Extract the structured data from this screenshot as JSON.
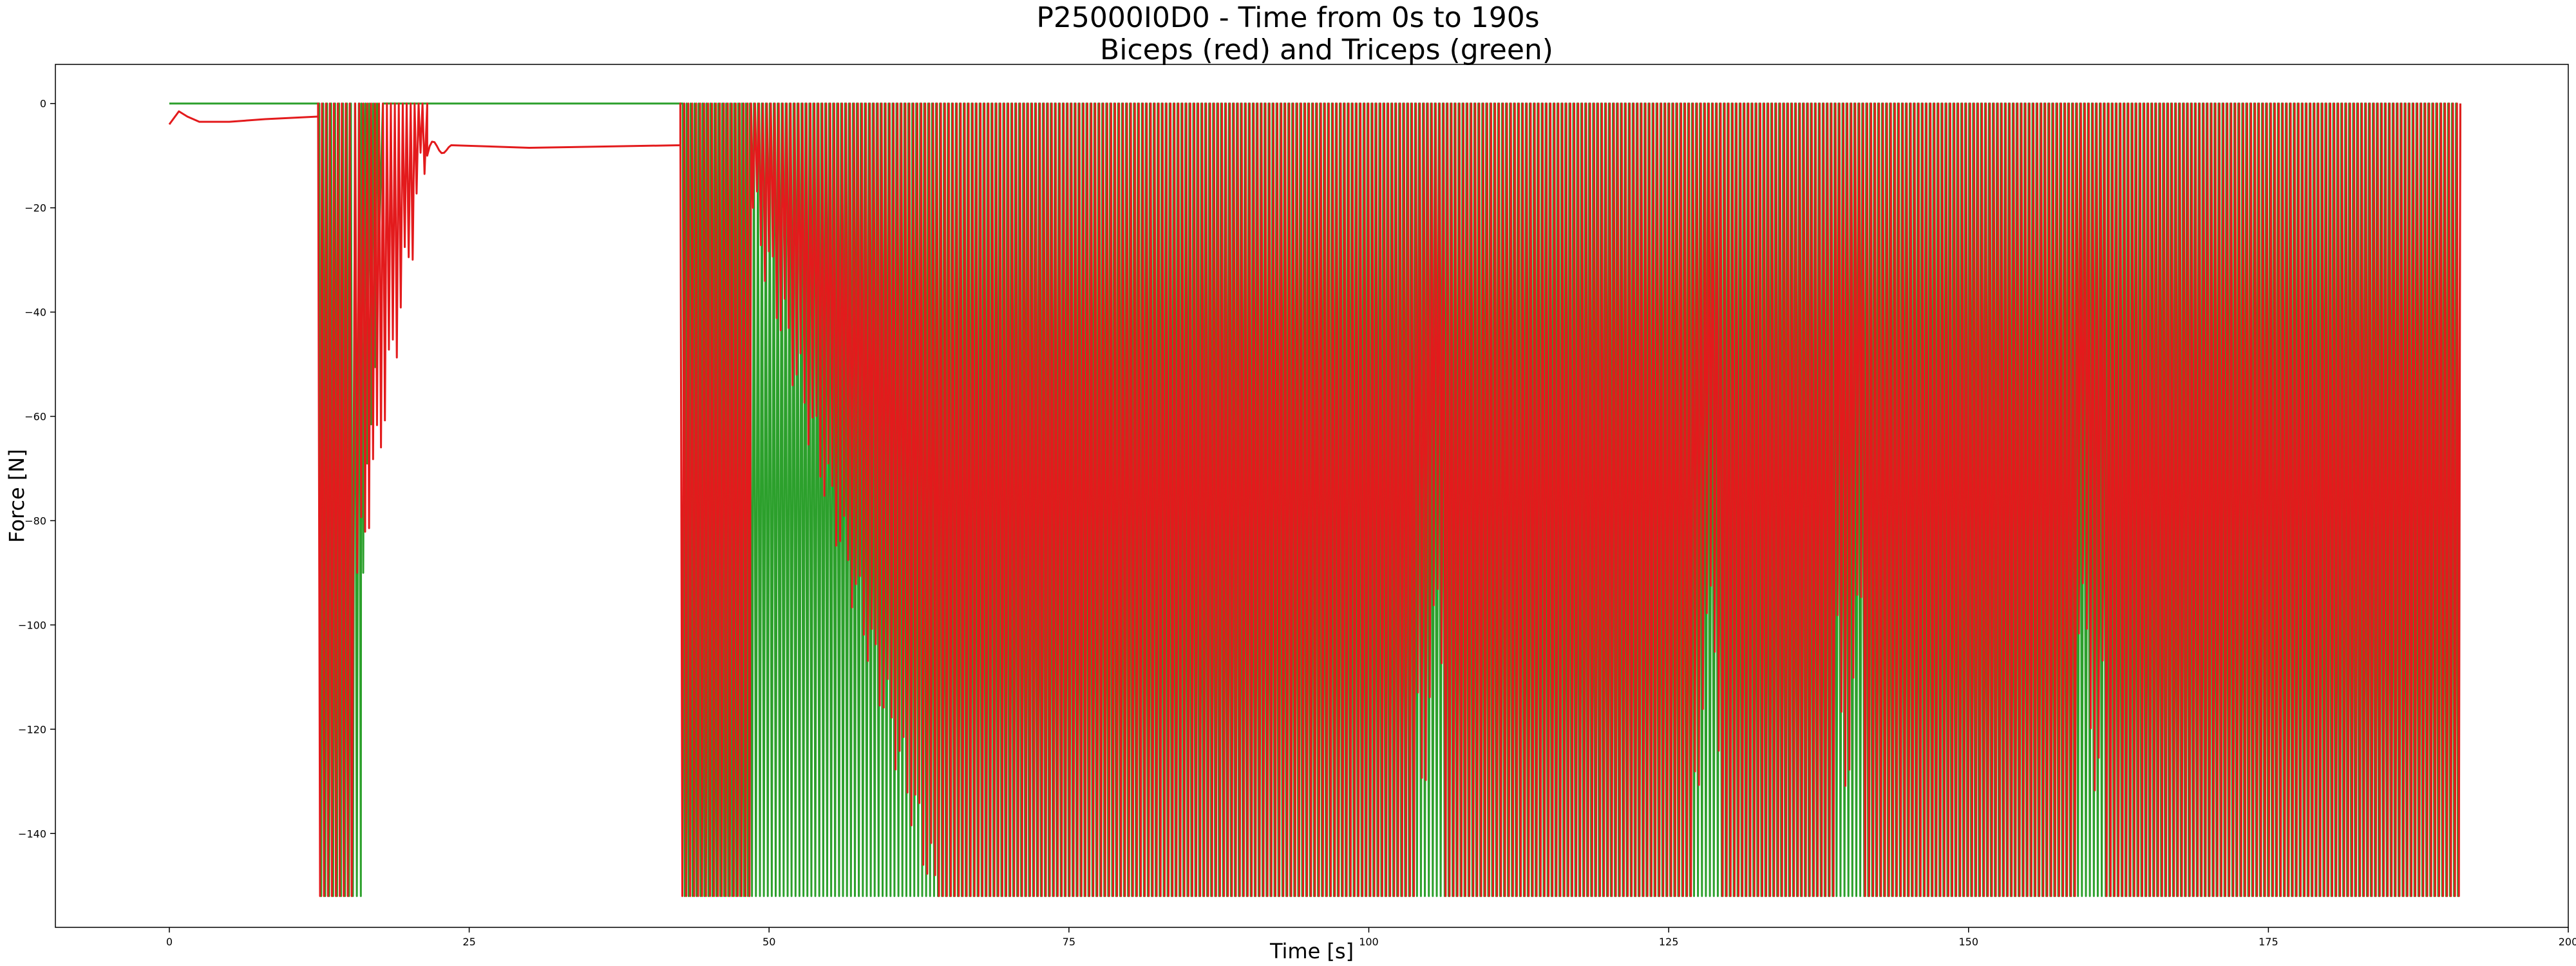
{
  "chart_data": {
    "type": "line",
    "title": "P25000I0D0 - Time from 0s to 190s",
    "subtitle": "Biceps (red) and Triceps (green)",
    "xlabel": "Time [s]",
    "ylabel": "Force [N]",
    "xlim": [
      -9.5,
      200
    ],
    "ylim": [
      -158,
      7.5
    ],
    "xticks": [
      0,
      25,
      50,
      75,
      100,
      125,
      150,
      175,
      200
    ],
    "yticks": [
      0,
      -20,
      -40,
      -60,
      -80,
      -100,
      -120,
      -140
    ],
    "grid": false,
    "legend": "none",
    "min_force": -152,
    "series": [
      {
        "color": "#2ca02c",
        "description_from_title": "Triceps (green)",
        "pattern": [
          {
            "t": 0,
            "v": 0
          },
          {
            "t": 12.5,
            "v": 0
          },
          {
            "segment": "oscillation",
            "from": 12.5,
            "to": 16.0,
            "period": 0.33,
            "low": -152,
            "high": 0
          },
          {
            "segment": "oscillation",
            "from": 16.0,
            "to": 17.8,
            "period": 0.33,
            "low_start": -90,
            "low_end": -30,
            "high": 0
          },
          {
            "t": 17.8,
            "v": 0
          },
          {
            "t": 42.8,
            "v": 0
          },
          {
            "segment": "oscillation",
            "from": 42.8,
            "to": 191,
            "period": 0.33,
            "low": -152,
            "high": 0
          }
        ]
      },
      {
        "color": "#e31a1c",
        "description_from_title": "Biceps (red)",
        "pattern": [
          {
            "t": 0,
            "v": -4
          },
          {
            "t": 0.8,
            "v": -1.5
          },
          {
            "t": 1.5,
            "v": -2.5
          },
          {
            "t": 2.5,
            "v": -3.5
          },
          {
            "t": 5,
            "v": -3.5
          },
          {
            "t": 8,
            "v": -3.0
          },
          {
            "t": 12.4,
            "v": -2.5
          },
          {
            "segment": "oscillation",
            "from": 12.4,
            "to": 15.5,
            "period": 0.33,
            "low": -152,
            "high": 0
          },
          {
            "segment": "oscillation",
            "from": 15.5,
            "to": 21.5,
            "period": 0.33,
            "low_start": -90,
            "low_end": -10,
            "high": 0
          },
          {
            "segment": "decay",
            "from": 21.5,
            "to": 23.5,
            "v_start": -10,
            "v_end": -8
          },
          {
            "t": 30,
            "v": -8.5
          },
          {
            "t": 42.6,
            "v": -8.0
          },
          {
            "segment": "oscillation",
            "from": 42.6,
            "to": 48.5,
            "period": 0.33,
            "low": -152,
            "high": 0
          },
          {
            "segment": "oscillation",
            "from": 48.5,
            "to": 64.0,
            "period": 0.33,
            "low_start": -20,
            "low_end": -150,
            "high": 0
          },
          {
            "segment": "oscillation",
            "from": 64.0,
            "to": 191,
            "period": 0.33,
            "low": -152,
            "high": 0,
            "shallow_dips_near": [
              105,
              128,
              140,
              160
            ]
          }
        ]
      }
    ]
  }
}
